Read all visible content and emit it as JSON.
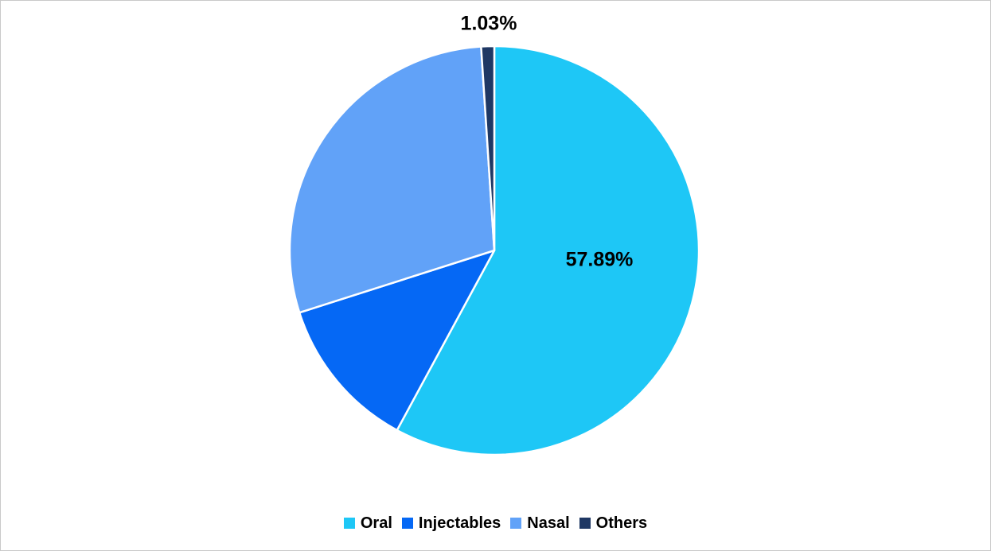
{
  "canvas": {
    "background": "#FFFFFF",
    "border_color": "#C9C9C9"
  },
  "chart_data": {
    "type": "pie",
    "title": "",
    "categories": [
      "Oral",
      "Injectables",
      "Nasal",
      "Others"
    ],
    "values": [
      57.89,
      12.19,
      28.89,
      1.03
    ],
    "colors": [
      "#1EC7F6",
      "#0568F5",
      "#61A2F8",
      "#1F3864"
    ],
    "data_labels": {
      "oral": "57.89%",
      "others": "1.03%"
    },
    "slice_border_color": "#FFFFFF",
    "start_angle_deg": 0,
    "direction": "clockwise",
    "legend_position": "bottom",
    "label_color": "#000000"
  },
  "legend": {
    "items": [
      {
        "label": "Oral",
        "color": "#1EC7F6"
      },
      {
        "label": "Injectables",
        "color": "#0568F5"
      },
      {
        "label": "Nasal",
        "color": "#61A2F8"
      },
      {
        "label": "Others",
        "color": "#1F3864"
      }
    ]
  }
}
